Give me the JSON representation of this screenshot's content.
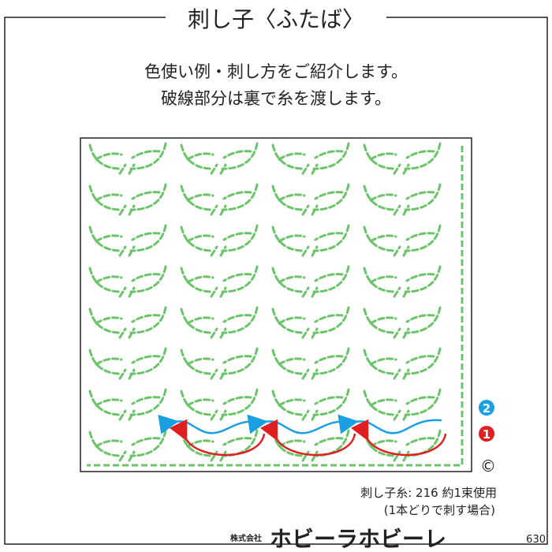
{
  "header": {
    "title": "刺し子〈ふたば〉"
  },
  "intro": [
    "色使い例・刺し方をご紹介します。",
    "破線部分は裏で糸を渡します。"
  ],
  "markers": [
    "2",
    "1",
    "©"
  ],
  "notes": [
    "刺し子糸: 216 約1束使用",
    "(1本どりで刺す場合)"
  ],
  "footer": {
    "company_prefix": "株式会社",
    "company": "ホビーラホビーレ",
    "number": "630"
  }
}
